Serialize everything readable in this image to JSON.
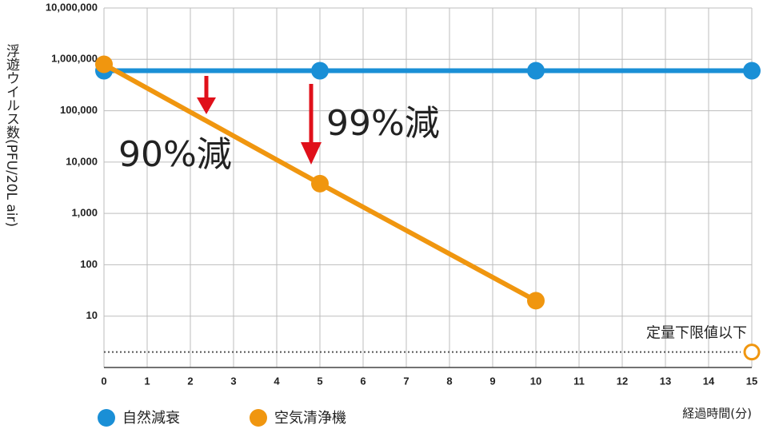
{
  "chart_data": {
    "type": "line",
    "y_label": "浮遊ウイルス数(PFU/20L air)",
    "x_label": "経過時間(分)",
    "log_scale": true,
    "grid": true,
    "xlim": [
      0,
      15
    ],
    "xticks": [
      0,
      1,
      2,
      3,
      4,
      5,
      6,
      7,
      8,
      9,
      10,
      11,
      12,
      13,
      14,
      15
    ],
    "ylim": [
      1,
      10000000
    ],
    "yticks": [
      {
        "value": 10,
        "label": "10"
      },
      {
        "value": 100,
        "label": "100"
      },
      {
        "value": 1000,
        "label": "1,000"
      },
      {
        "value": 10000,
        "label": "10,000"
      },
      {
        "value": 100000,
        "label": "100,000"
      },
      {
        "value": 1000000,
        "label": "1,000,000"
      },
      {
        "value": 10000000,
        "label": "10,000,000"
      }
    ],
    "series": [
      {
        "name": "自然減衰",
        "color": "#1a8fd6",
        "x": [
          0,
          5,
          10,
          15
        ],
        "values": [
          600000,
          600000,
          600000,
          600000
        ]
      },
      {
        "name": "空気清浄機",
        "color": "#f0960f",
        "x": [
          0,
          5,
          10
        ],
        "values": [
          800000,
          3800,
          20
        ]
      }
    ],
    "limit": {
      "label": "定量下限値以下",
      "value": 2,
      "x": 15
    },
    "annotations": [
      {
        "text": "90%減"
      },
      {
        "text": "99%減"
      }
    ]
  }
}
